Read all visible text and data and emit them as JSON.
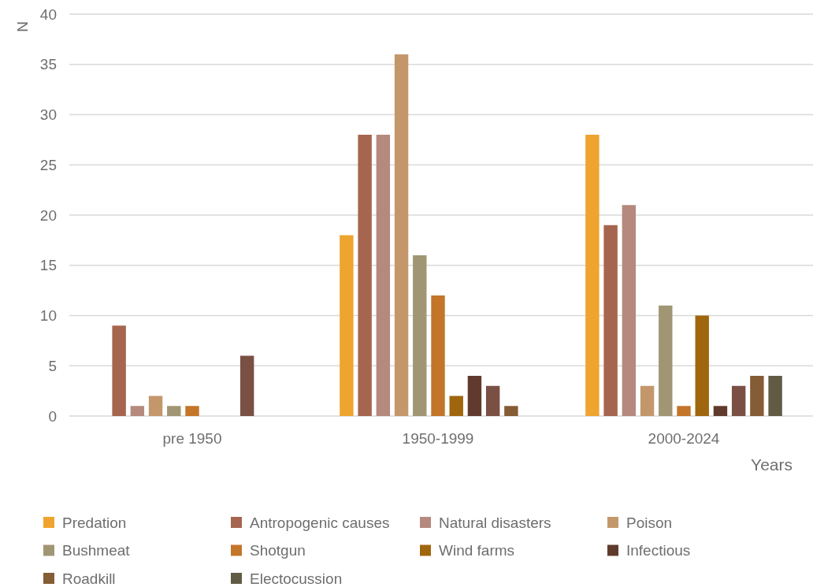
{
  "chart_data": {
    "type": "bar",
    "xlabel": "Years",
    "ylabel": "N",
    "categories": [
      "pre 1950",
      "1950-1999",
      "2000-2024"
    ],
    "ylim": [
      0,
      40
    ],
    "yticks": [
      0,
      5,
      10,
      15,
      20,
      25,
      30,
      35,
      40
    ],
    "grid": "y",
    "legend": "bottom",
    "series": [
      {
        "name": "Predation",
        "color": "#eea42e",
        "values": [
          null,
          18,
          28
        ]
      },
      {
        "name": "Antropogenic causes",
        "color": "#a5654e",
        "values": [
          9,
          28,
          19
        ]
      },
      {
        "name": "Natural disasters",
        "color": "#b5897d",
        "values": [
          1,
          28,
          21
        ]
      },
      {
        "name": "Poison",
        "color": "#c4976b",
        "values": [
          2,
          36,
          3
        ]
      },
      {
        "name": "Bushmeat",
        "color": "#a19673",
        "values": [
          1,
          16,
          11
        ]
      },
      {
        "name": "Shotgun",
        "color": "#c3752a",
        "values": [
          1,
          12,
          1
        ]
      },
      {
        "name": "Wind farms",
        "color": "#a0660e",
        "values": [
          null,
          2,
          10
        ]
      },
      {
        "name": "Infectious",
        "color": "#613a2e",
        "values": [
          null,
          4,
          1
        ]
      },
      {
        "color": "#7a5044",
        "values": [
          6,
          3,
          3
        ]
      },
      {
        "name": "Roadkill",
        "color": "#845c35",
        "values": [
          null,
          1,
          4
        ]
      },
      {
        "name": "Electocussion",
        "color": "#615b46",
        "values": [
          null,
          null,
          4
        ]
      }
    ]
  }
}
